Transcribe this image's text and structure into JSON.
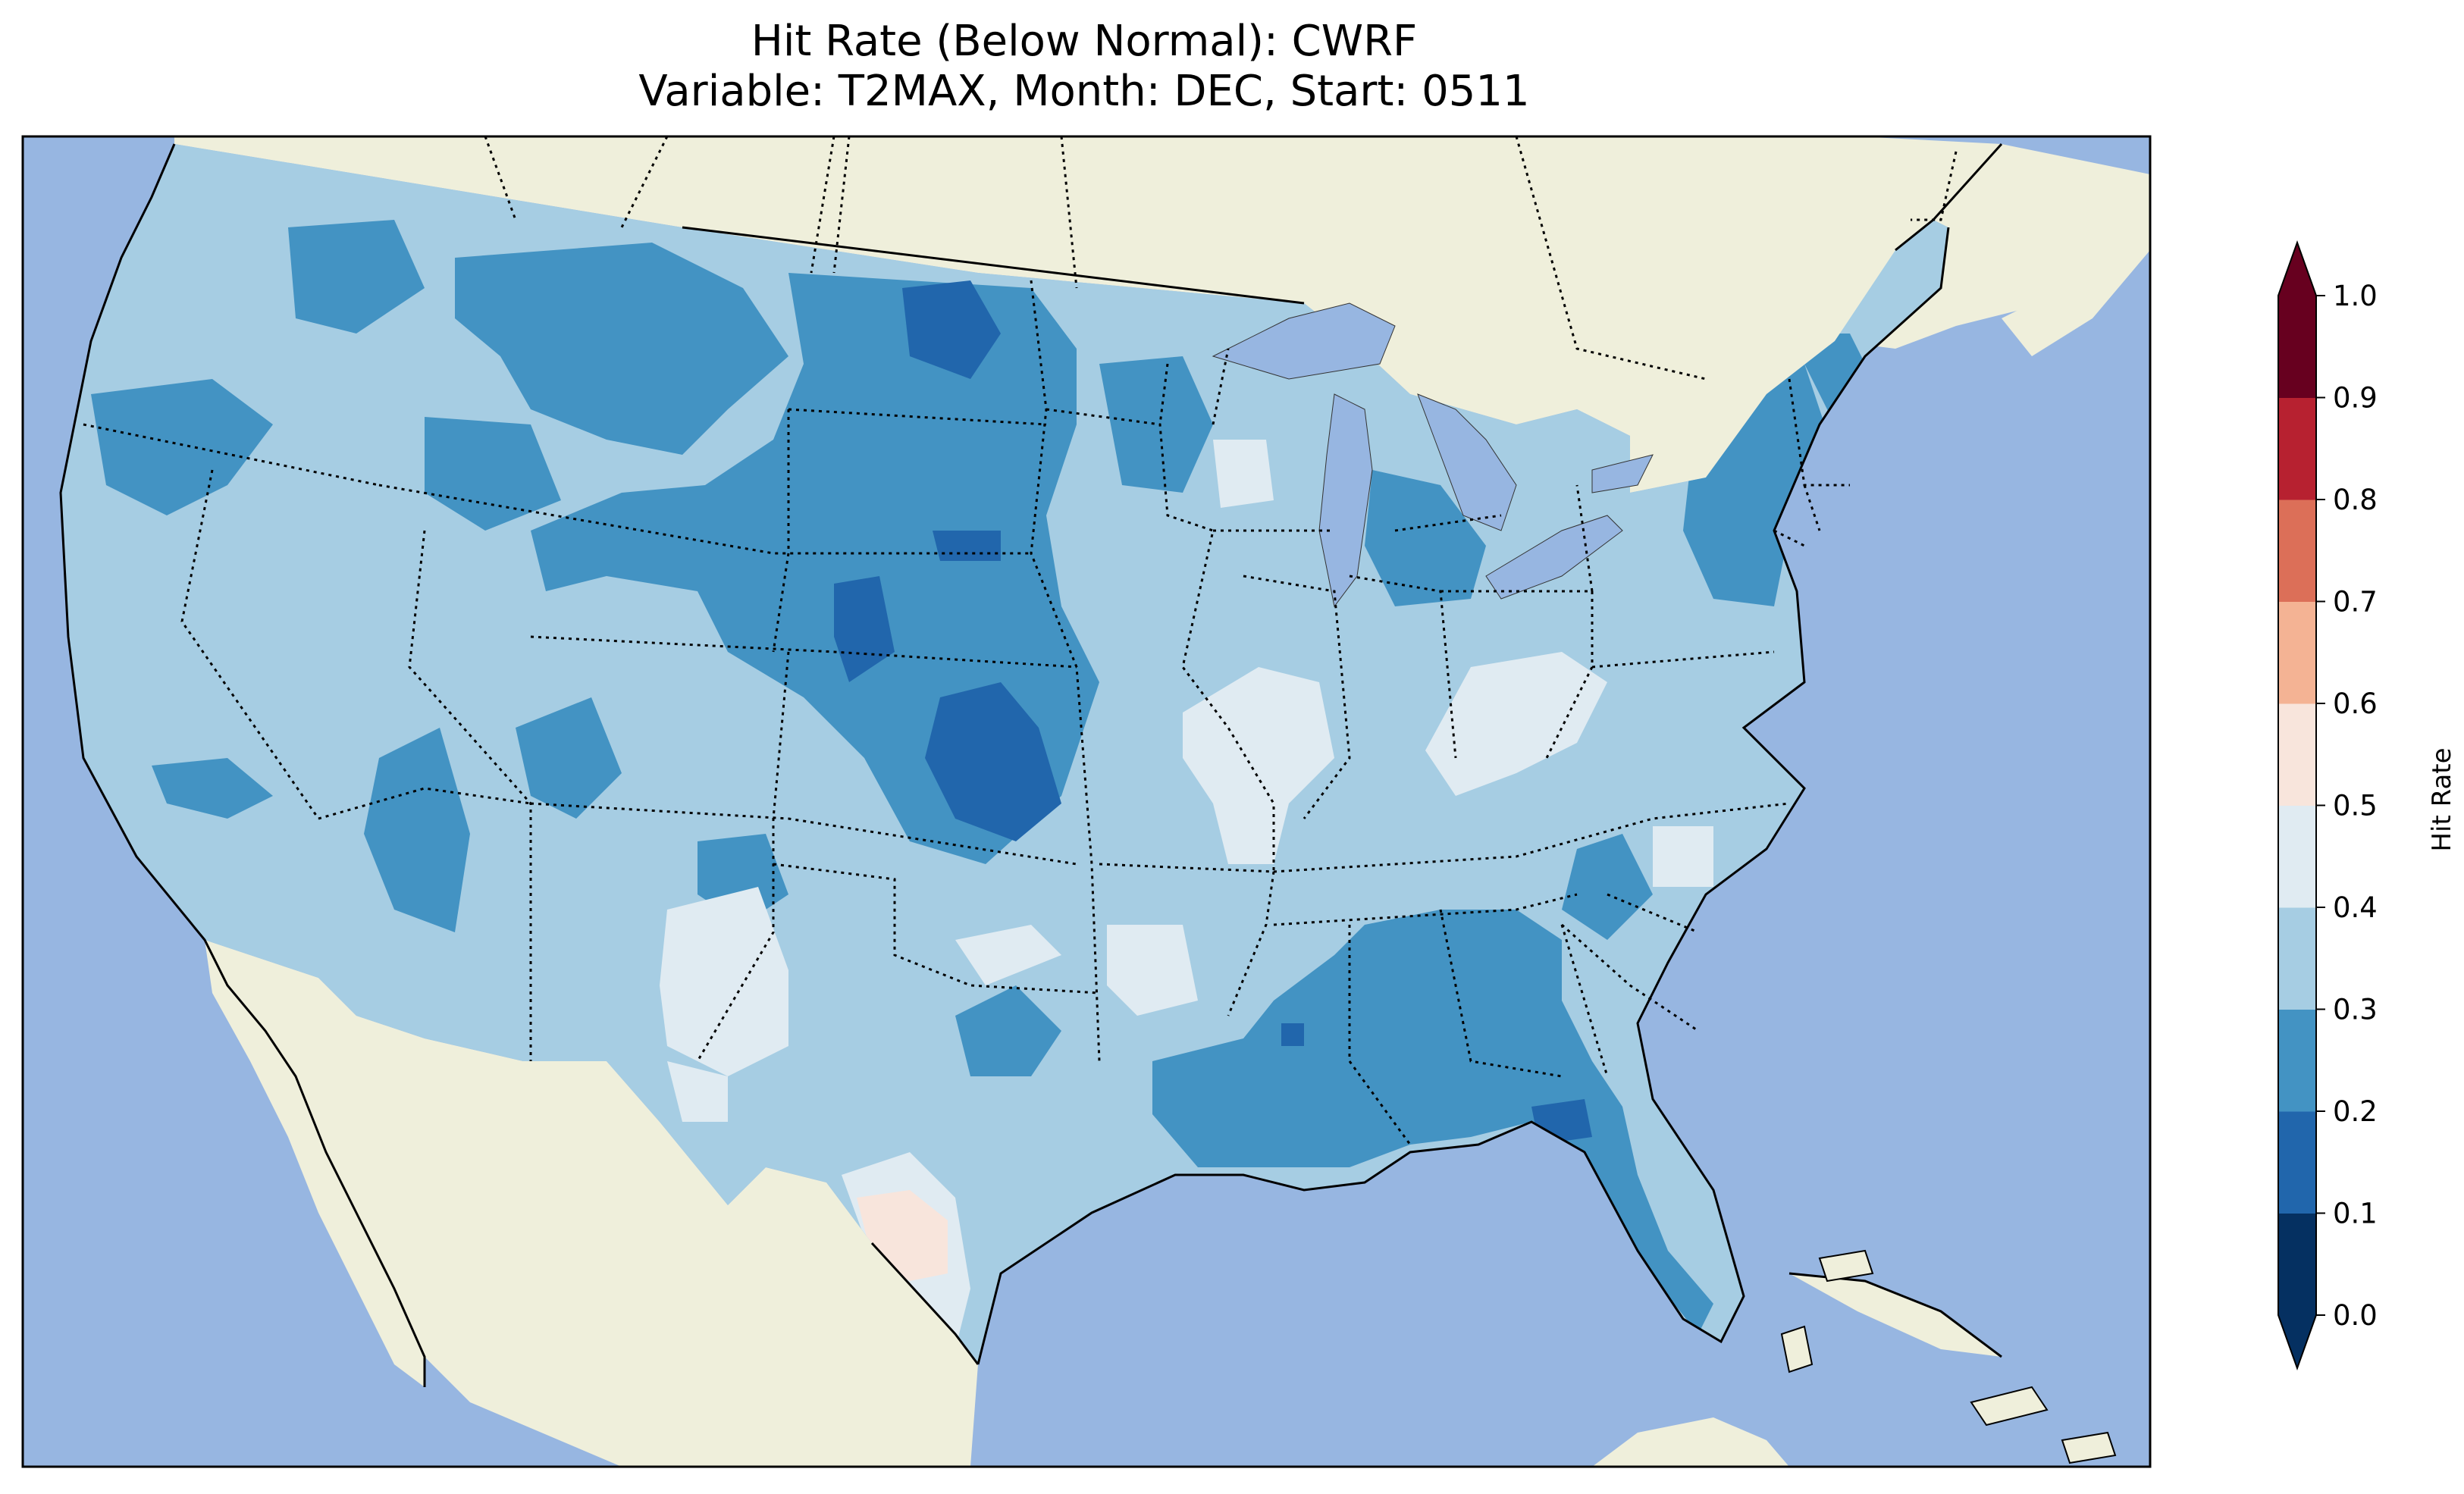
{
  "title": {
    "line1": "Hit Rate (Below Normal): CWRF",
    "line2": "Variable: T2MAX, Month: DEC, Start: 0511"
  },
  "colors": {
    "ocean": "#97b6e1",
    "land": "#efefdb",
    "lake": "#97b6e1",
    "border": "#000000"
  },
  "colorbar": {
    "label": "Hit Rate",
    "ticks": [
      "0.0",
      "0.1",
      "0.2",
      "0.3",
      "0.4",
      "0.5",
      "0.6",
      "0.7",
      "0.8",
      "0.9",
      "1.0"
    ],
    "bins": [
      {
        "from": 0.0,
        "to": 0.1,
        "color": "#053061"
      },
      {
        "from": 0.1,
        "to": 0.2,
        "color": "#2166ac"
      },
      {
        "from": 0.2,
        "to": 0.3,
        "color": "#4393c3"
      },
      {
        "from": 0.3,
        "to": 0.4,
        "color": "#a6cde3"
      },
      {
        "from": 0.4,
        "to": 0.5,
        "color": "#e0ebf2"
      },
      {
        "from": 0.5,
        "to": 0.6,
        "color": "#f8e5dc"
      },
      {
        "from": 0.6,
        "to": 0.7,
        "color": "#f4b394"
      },
      {
        "from": 0.7,
        "to": 0.8,
        "color": "#dc6f58"
      },
      {
        "from": 0.8,
        "to": 0.9,
        "color": "#b72130"
      },
      {
        "from": 0.9,
        "to": 1.0,
        "color": "#67001f"
      }
    ],
    "extend": "both"
  }
}
